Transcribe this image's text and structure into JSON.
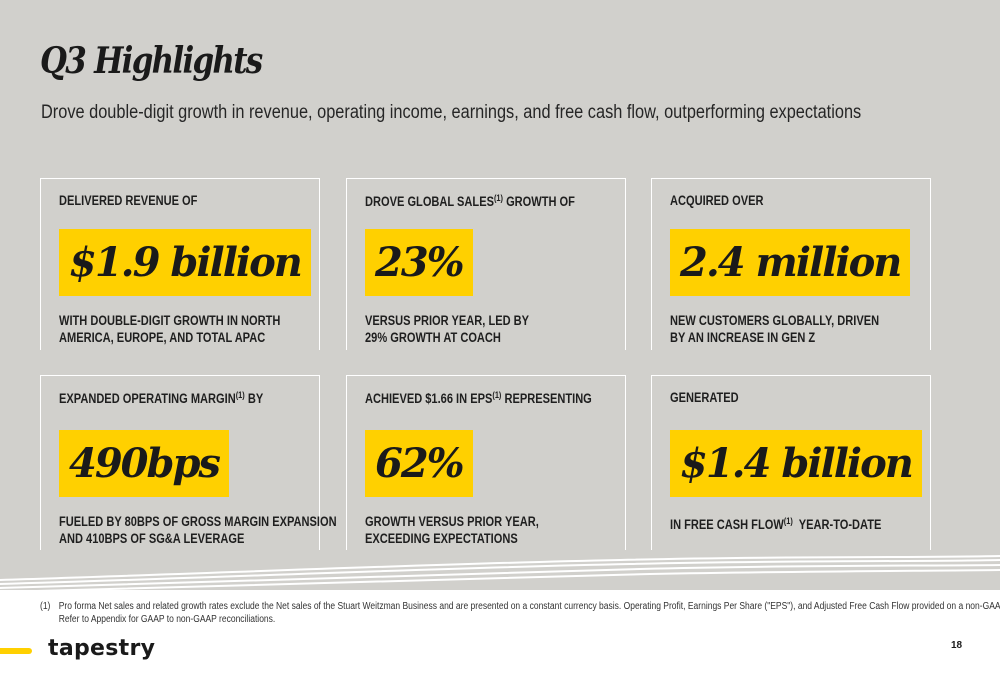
{
  "header": {
    "title": "Q3 Highlights",
    "subtitle": "Drove double-digit growth in revenue, operating income, earnings, and free cash flow, outperforming expectations"
  },
  "cards": [
    {
      "label": "DELIVERED REVENUE OF",
      "value": "$1.9 billion",
      "description": [
        "WITH DOUBLE-DIGIT GROWTH IN NORTH",
        "AMERICA, EUROPE, AND TOTAL APAC"
      ]
    },
    {
      "label_before": "DROVE GLOBAL SALES",
      "label_sup": "(1)",
      "label_after": " GROWTH OF",
      "value": "23%",
      "description": [
        "VERSUS PRIOR YEAR, LED BY",
        "29% GROWTH AT COACH"
      ]
    },
    {
      "label": "ACQUIRED OVER",
      "value": "2.4 million",
      "description": [
        "NEW CUSTOMERS GLOBALLY, DRIVEN",
        "BY AN INCREASE IN GEN Z"
      ]
    },
    {
      "label_before": "EXPANDED OPERATING MARGIN",
      "label_sup": "(1)",
      "label_after": " BY",
      "value": "490bps",
      "description": [
        "FUELED BY 80BPS OF GROSS MARGIN EXPANSION",
        "AND 410BPS OF SG&A LEVERAGE"
      ]
    },
    {
      "label_before": "ACHIEVED $1.66 IN EPS",
      "label_sup": "(1)",
      "label_after": " REPRESENTING",
      "value": "62%",
      "description": [
        "GROWTH VERSUS PRIOR YEAR,",
        "EXCEEDING EXPECTATIONS"
      ]
    },
    {
      "label": "GENERATED",
      "value": "$1.4 billion",
      "description_before": "IN FREE CASH FLOW",
      "description_sup": "(1)",
      "description_after": "  YEAR-TO-DATE"
    }
  ],
  "footnote": {
    "marker": "(1)",
    "line1": "Pro forma Net sales and related growth rates exclude the Net sales of the Stuart Weitzman Business and are presented on a constant currency basis. Operating Profit, Earnings Per Share (\"EPS\"), and Adjusted Free Cash Flow provided on a non-GAAP basis.",
    "line2": "Refer to Appendix for GAAP to non-GAAP reconciliations."
  },
  "footer": {
    "brand": "tapestry",
    "page_number": "18"
  },
  "colors": {
    "background": "#d1d0cc",
    "highlight": "#ffd000",
    "text": "#1c1c1c",
    "frame": "#ffffff"
  }
}
